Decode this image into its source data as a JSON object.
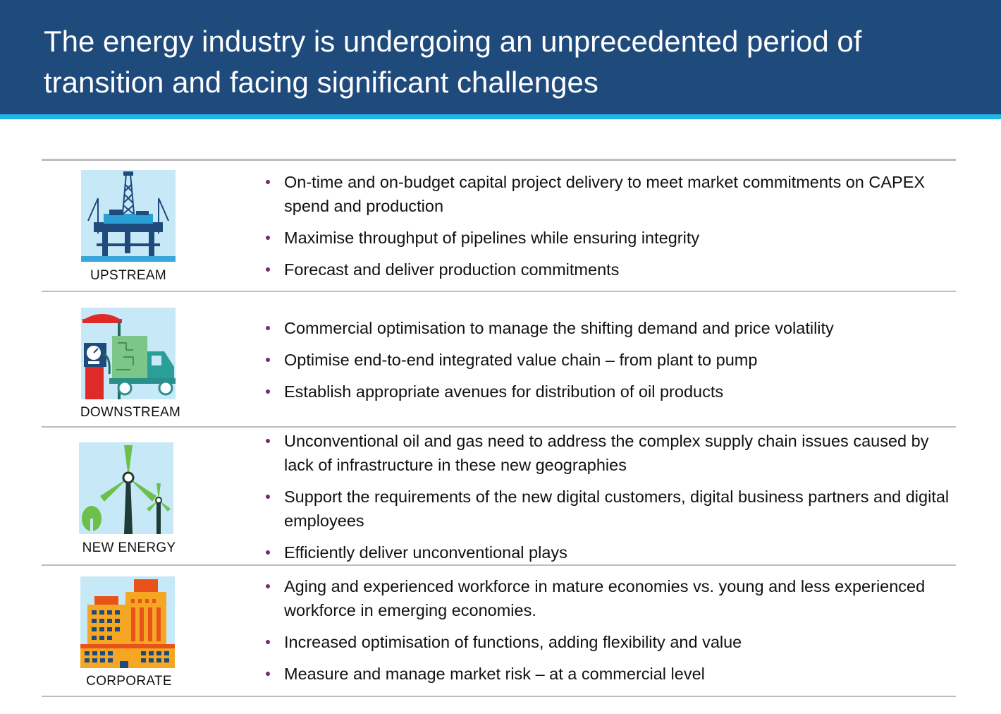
{
  "title": {
    "line1": "The energy industry is undergoing an unprecedented period of",
    "line2": "transition and facing significant challenges"
  },
  "sections": [
    {
      "label": "UPSTREAM",
      "icon": "offshore-rig-icon",
      "bullets": [
        "On-time and on-budget capital project delivery to meet market commitments on CAPEX spend and production",
        "Maximise throughput of pipelines while ensuring integrity",
        "Forecast and deliver production commitments"
      ]
    },
    {
      "label": "DOWNSTREAM",
      "icon": "fuel-pump-truck-icon",
      "bullets": [
        "Commercial optimisation to manage the shifting demand and price volatility",
        "Optimise end-to-end integrated value chain – from plant to pump",
        "Establish appropriate avenues for distribution of oil products"
      ]
    },
    {
      "label": "NEW ENERGY",
      "icon": "wind-turbine-icon",
      "bullets": [
        "Unconventional oil and gas need to address the complex supply chain issues caused by lack of infrastructure in these new geographies",
        "Support the requirements of the new digital customers, digital business partners and digital employees",
        "Efficiently deliver unconventional plays"
      ]
    },
    {
      "label": "CORPORATE",
      "icon": "office-buildings-icon",
      "bullets": [
        "Aging and experienced workforce in mature economies vs. young and less experienced workforce in emerging economies.",
        "Increased optimisation of functions, adding flexibility and value",
        "Measure and manage market risk – at a commercial level"
      ]
    }
  ],
  "colors": {
    "header": "#1f4a7c",
    "accent_line": "#1fb6e6",
    "bullet": "#7a2a6d",
    "icon_bg": "#c6e8f7"
  }
}
